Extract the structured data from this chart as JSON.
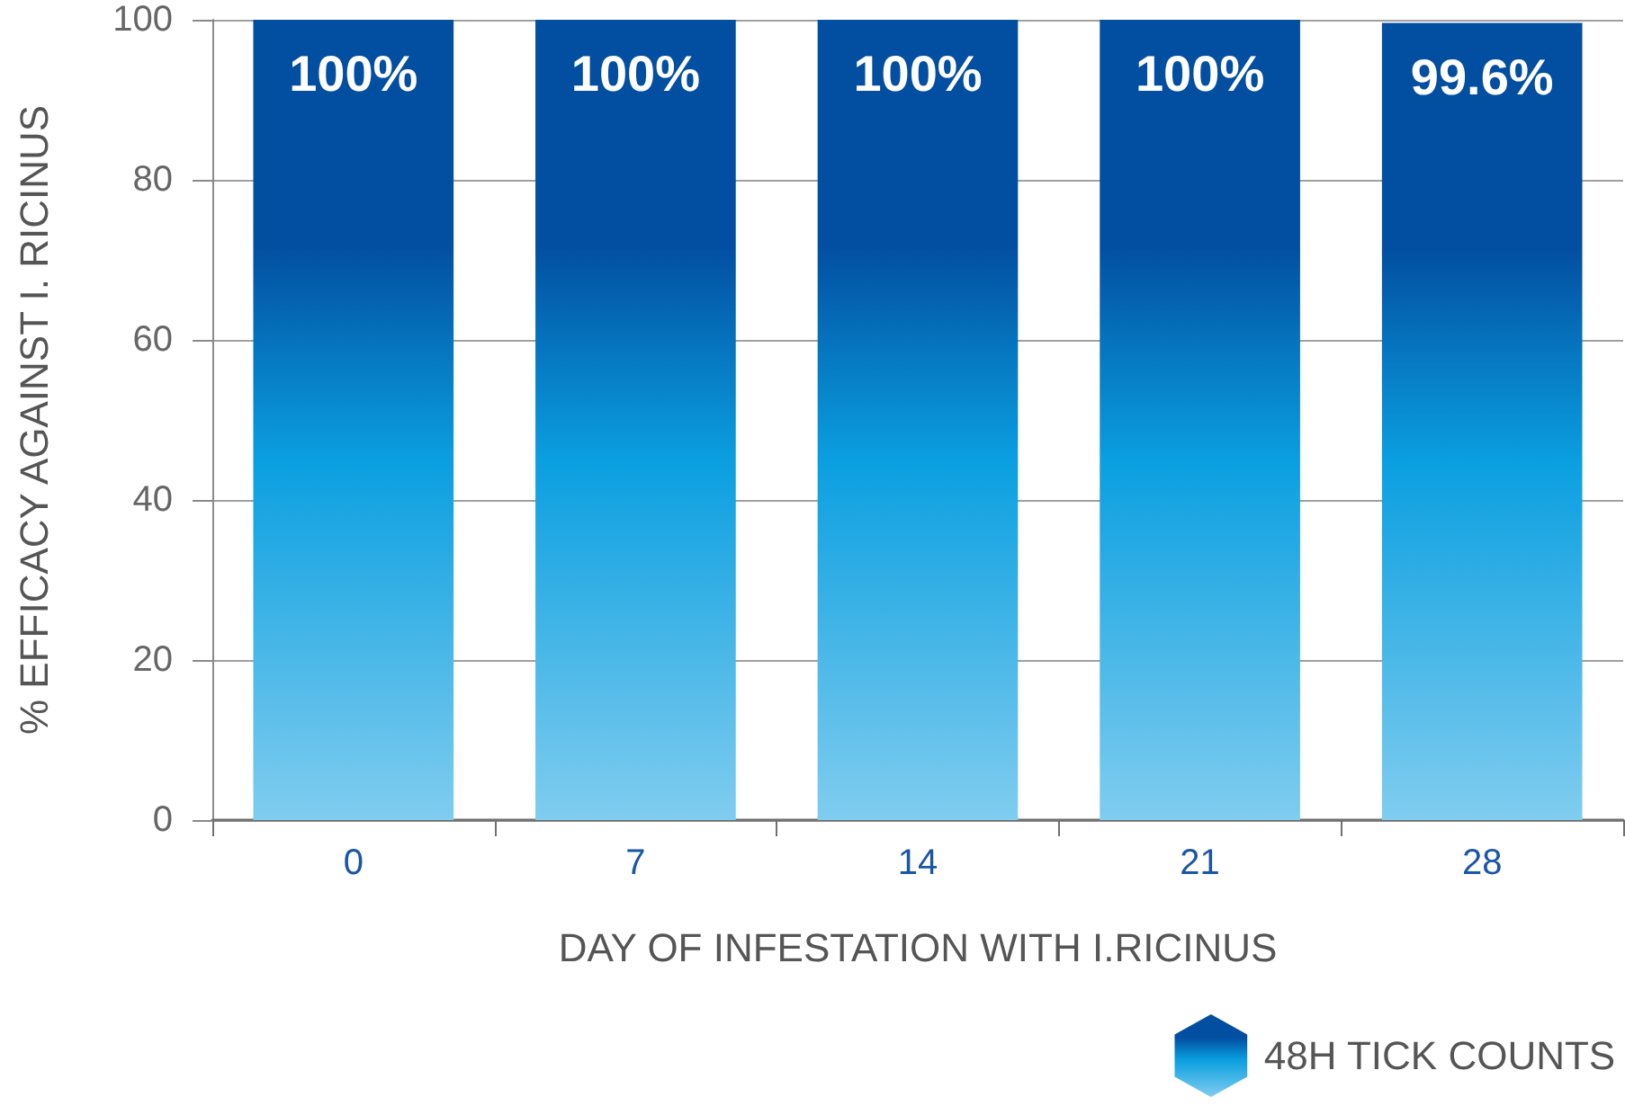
{
  "chart_data": {
    "type": "bar",
    "xlabel": "DAY OF INFESTATION WITH I.RICINUS",
    "ylabel": "% EFFICACY AGAINST I. RICINUS",
    "categories": [
      "0",
      "7",
      "14",
      "21",
      "28"
    ],
    "series": [
      {
        "name": "48H TICK COUNTS",
        "color": "#0a9fe0",
        "values": [
          100,
          100,
          100,
          100,
          99.6
        ],
        "value_labels": [
          "100%",
          "100%",
          "100%",
          "100%",
          "99.6%"
        ]
      }
    ],
    "ylim": [
      0,
      100
    ],
    "yticks": [
      0,
      20,
      40,
      60,
      80,
      100
    ],
    "grid": "y",
    "legend": "bottom right"
  }
}
